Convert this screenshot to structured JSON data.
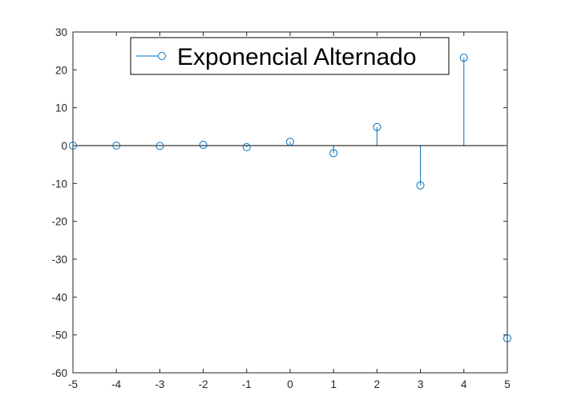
{
  "colors": {
    "series": "#0072BD",
    "axes": "#262626",
    "background": "#ffffff"
  },
  "chart_data": {
    "type": "stem",
    "title": "",
    "xlabel": "",
    "ylabel": "",
    "xlim": [
      -5,
      5
    ],
    "ylim": [
      -60,
      30
    ],
    "xticks": [
      "-5",
      "-4",
      "-3",
      "-2",
      "-1",
      "0",
      "1",
      "2",
      "3",
      "4",
      "5"
    ],
    "yticks": [
      "30",
      "20",
      "10",
      "0",
      "-10",
      "-20",
      "-30",
      "-40",
      "-50",
      "-60"
    ],
    "grid": false,
    "baseline": 0,
    "legend": {
      "position": "top",
      "entries": [
        "Exponencial Alternado"
      ]
    },
    "series": [
      {
        "name": "Exponencial Alternado",
        "marker": "circle",
        "x": [
          -5,
          -4,
          -3,
          -2,
          -1,
          0,
          1,
          2,
          3,
          4,
          5
        ],
        "values": [
          0.0,
          0.0,
          -0.1,
          0.2,
          -0.4,
          1.0,
          -2.0,
          4.9,
          -10.5,
          23.2,
          -50.9
        ]
      }
    ]
  }
}
